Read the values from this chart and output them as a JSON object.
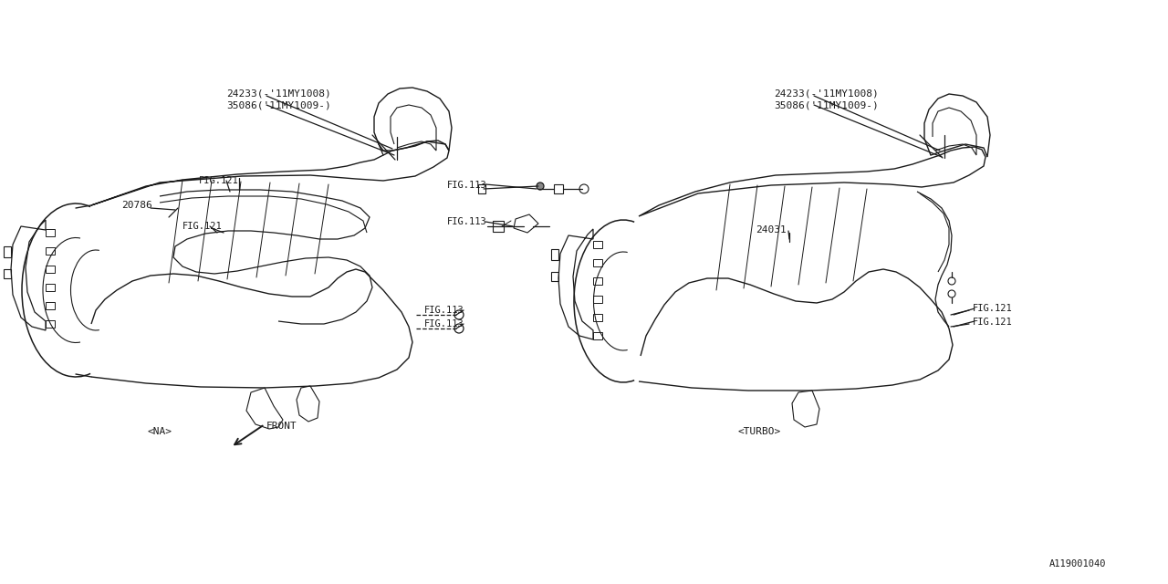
{
  "bg_color": "#ffffff",
  "line_color": "#1a1a1a",
  "fig_width": 12.8,
  "fig_height": 6.4,
  "dpi": 100,
  "diagram_id": "A119001040",
  "font_family": "DejaVu Sans Mono",
  "labels": {
    "na_label": "<NA>",
    "turbo_label": "<TURBO>",
    "front_label": "FRONT",
    "part_20786": "20786",
    "part_24031": "24031",
    "part_24233_left_line1": "24233(-'11MY1008)",
    "part_24233_left_line2": "35086('11MY1009-)",
    "part_24233_right_line1": "24233(-'11MY1008)",
    "part_24233_right_line2": "35086('11MY1009-)",
    "fig121_L1": "FIG.121",
    "fig121_L2": "FIG.121",
    "fig113_A": "FIG.113",
    "fig113_B": "FIG.113",
    "fig113_C": "FIG.113",
    "fig113_D": "FIG.113",
    "fig121_R1": "FIG.121",
    "fig121_R2": "FIG.121"
  }
}
